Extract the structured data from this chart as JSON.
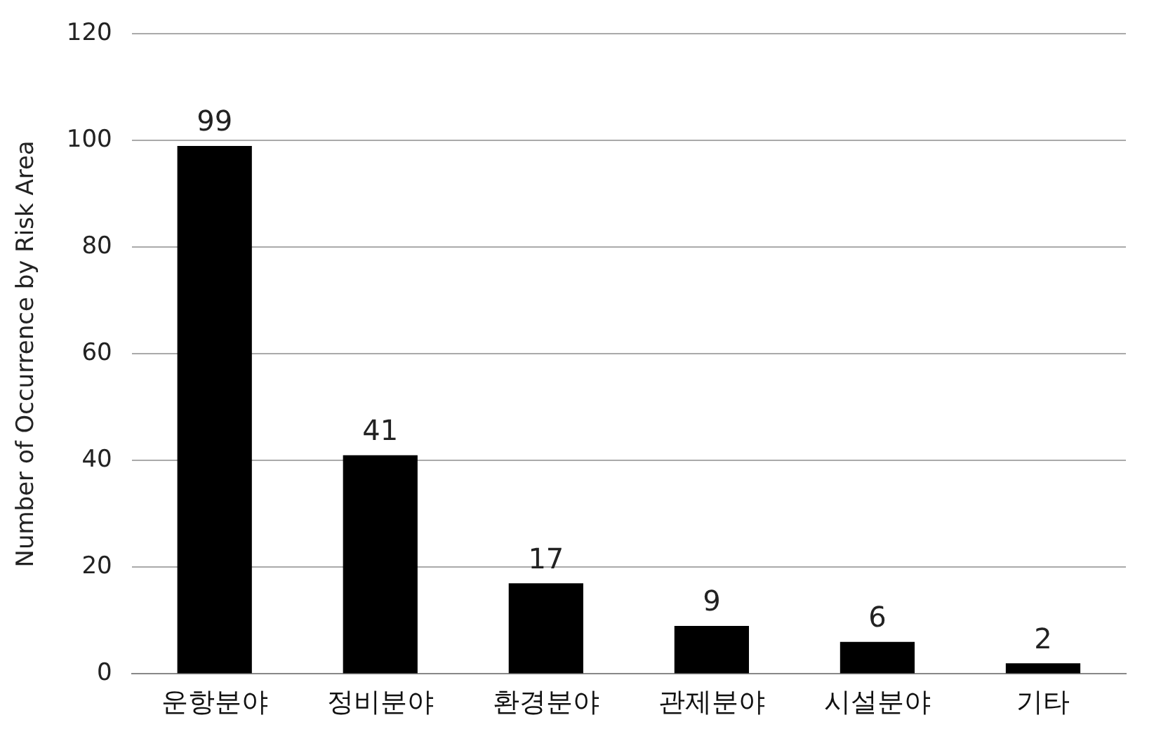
{
  "chart_data": {
    "type": "bar",
    "ylabel": "Number of Occurrence by Risk Area",
    "categories": [
      "운항분야",
      "정비분야",
      "환경분야",
      "관제분야",
      "시설분야",
      "기타"
    ],
    "values": [
      99,
      41,
      17,
      9,
      6,
      2
    ],
    "color": "#000000",
    "ylim": [
      0,
      120
    ],
    "yticks": [
      0,
      20,
      40,
      60,
      80,
      100,
      120
    ],
    "grid": "y",
    "data_labels": true
  }
}
